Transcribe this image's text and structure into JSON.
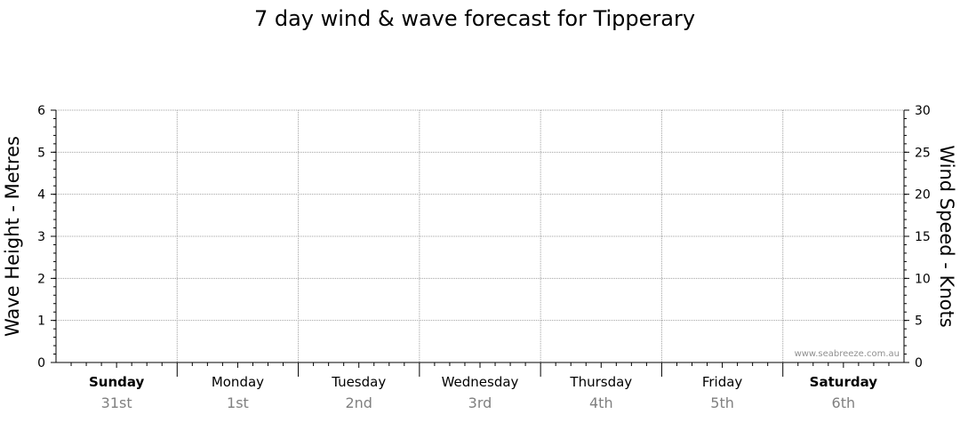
{
  "chart_data": {
    "type": "line",
    "title": "7 day wind & wave forecast for Tipperary",
    "ylabel_left": "Wave Height - Metres",
    "ylabel_right": "Wind Speed - Knots",
    "ylim_left": [
      0,
      6
    ],
    "ylim_right": [
      0,
      30
    ],
    "yticks_left": [
      "0",
      "1",
      "2",
      "3",
      "4",
      "5",
      "6"
    ],
    "yticks_right": [
      "0",
      "5",
      "10",
      "15",
      "20",
      "25",
      "30"
    ],
    "days": [
      {
        "name": "Sunday",
        "date": "31st",
        "bold": true
      },
      {
        "name": "Monday",
        "date": "1st",
        "bold": false
      },
      {
        "name": "Tuesday",
        "date": "2nd",
        "bold": false
      },
      {
        "name": "Wednesday",
        "date": "3rd",
        "bold": false
      },
      {
        "name": "Thursday",
        "date": "4th",
        "bold": false
      },
      {
        "name": "Friday",
        "date": "5th",
        "bold": false
      },
      {
        "name": "Saturday",
        "date": "6th",
        "bold": true
      }
    ],
    "series": [],
    "grid": true,
    "watermark": "www.seabreeze.com.au"
  }
}
